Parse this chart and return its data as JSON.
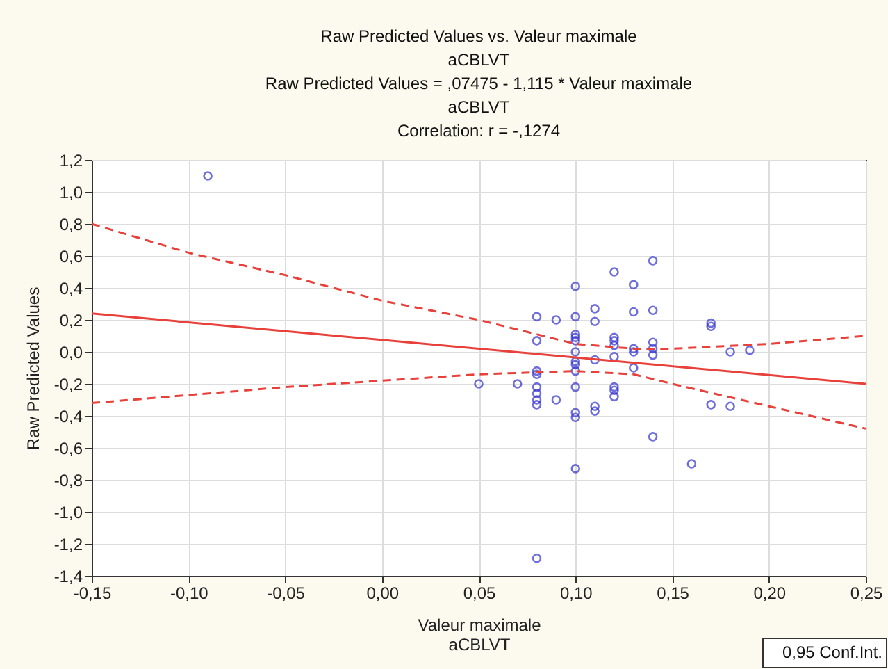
{
  "chart_data": {
    "type": "scatter",
    "title": "Raw Predicted Values  vs. Valeur maximale\naCBLVT\nRaw Predicted Values  = ,07475 - 1,115  * Valeur maximale\naCBLVT\nCorrelation: r = -,1274",
    "xlabel": "Valeur maximale\naCBLVT",
    "ylabel": "Raw Predicted Values",
    "xlim": [
      -0.15,
      0.25
    ],
    "ylim": [
      -1.4,
      1.2
    ],
    "xticks": [
      {
        "value": -0.15,
        "label": "-0,15"
      },
      {
        "value": -0.1,
        "label": "-0,10"
      },
      {
        "value": -0.05,
        "label": "-0,05"
      },
      {
        "value": 0,
        "label": "0,00"
      },
      {
        "value": 0.05,
        "label": "0,05"
      },
      {
        "value": 0.1,
        "label": "0,10"
      },
      {
        "value": 0.15,
        "label": "0,15"
      },
      {
        "value": 0.2,
        "label": "0,20"
      },
      {
        "value": 0.25,
        "label": "0,25"
      }
    ],
    "yticks": [
      {
        "value": -1.4,
        "label": "-1,4"
      },
      {
        "value": -1.2,
        "label": "-1,2"
      },
      {
        "value": -1.0,
        "label": "-1,0"
      },
      {
        "value": -0.8,
        "label": "-0,8"
      },
      {
        "value": -0.6,
        "label": "-0,6"
      },
      {
        "value": -0.4,
        "label": "-0,4"
      },
      {
        "value": -0.2,
        "label": "-0,2"
      },
      {
        "value": 0,
        "label": "0,0"
      },
      {
        "value": 0.2,
        "label": "0,2"
      },
      {
        "value": 0.4,
        "label": "0,4"
      },
      {
        "value": 0.6,
        "label": "0,6"
      },
      {
        "value": 0.8,
        "label": "0,8"
      },
      {
        "value": 1.0,
        "label": "1,0"
      },
      {
        "value": 1.2,
        "label": "1,2"
      }
    ],
    "grid": true,
    "series": [
      {
        "color": "#3333cc",
        "marker": "circle",
        "x": [
          -0.09,
          0.05,
          0.07,
          0.08,
          0.08,
          0.08,
          0.08,
          0.08,
          0.08,
          0.08,
          0.08,
          0.08,
          0.09,
          0.09,
          0.1,
          0.1,
          0.1,
          0.1,
          0.1,
          0.1,
          0.1,
          0.1,
          0.1,
          0.1,
          0.1,
          0.1,
          0.1,
          0.11,
          0.11,
          0.11,
          0.11,
          0.11,
          0.12,
          0.12,
          0.12,
          0.12,
          0.12,
          0.12,
          0.12,
          0.12,
          0.13,
          0.13,
          0.13,
          0.13,
          0.13,
          0.14,
          0.14,
          0.14,
          0.14,
          0.14,
          0.14,
          0.16,
          0.17,
          0.17,
          0.17,
          0.18,
          0.18,
          0.19
        ],
        "values": [
          1.1,
          -0.2,
          -0.2,
          0.22,
          0.07,
          -0.12,
          -0.14,
          -0.22,
          -0.26,
          -0.3,
          -0.33,
          -1.29,
          0.2,
          -0.3,
          0.41,
          0.22,
          0.11,
          0.09,
          0.07,
          0.0,
          -0.06,
          -0.08,
          -0.12,
          -0.22,
          -0.38,
          -0.41,
          -0.73,
          0.27,
          0.19,
          -0.05,
          -0.34,
          -0.37,
          0.5,
          0.09,
          0.07,
          0.04,
          -0.03,
          -0.22,
          -0.24,
          -0.28,
          0.42,
          0.25,
          0.02,
          0.0,
          -0.1,
          0.57,
          0.26,
          0.06,
          0.02,
          -0.02,
          -0.53,
          -0.7,
          0.18,
          0.16,
          -0.33,
          0.0,
          -0.34,
          0.01
        ]
      },
      {
        "type": "line",
        "color": "#e8403a",
        "line_style": "solid",
        "x": [
          -0.15,
          0.25
        ],
        "values": [
          0.24,
          -0.2
        ]
      },
      {
        "type": "line",
        "color": "#e8403a",
        "line_style": "dashed",
        "x": [
          -0.15,
          -0.1,
          -0.05,
          0.0,
          0.05,
          0.1,
          0.13,
          0.15,
          0.2,
          0.25
        ],
        "values": [
          0.8,
          0.62,
          0.48,
          0.32,
          0.2,
          0.05,
          0.02,
          0.02,
          0.05,
          0.1
        ]
      },
      {
        "type": "line",
        "color": "#e8403a",
        "line_style": "dashed",
        "x": [
          -0.15,
          -0.1,
          -0.05,
          0.0,
          0.05,
          0.1,
          0.13,
          0.15,
          0.2,
          0.25
        ],
        "values": [
          -0.32,
          -0.27,
          -0.22,
          -0.18,
          -0.14,
          -0.12,
          -0.14,
          -0.2,
          -0.34,
          -0.48
        ]
      }
    ],
    "annotations": [
      "0,95 Conf.Int."
    ]
  }
}
